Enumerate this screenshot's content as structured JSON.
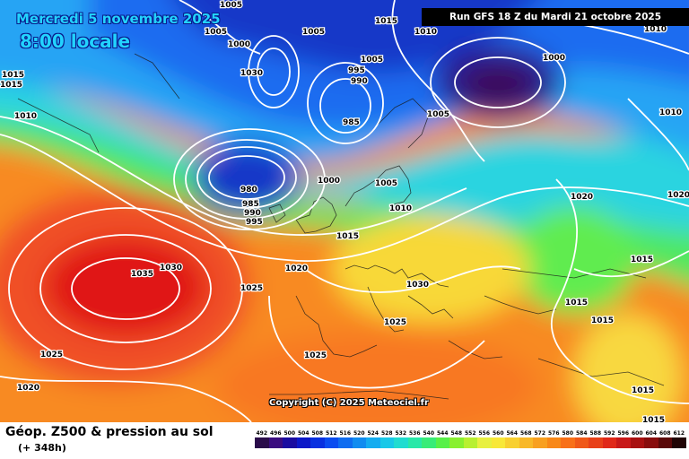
{
  "header": {
    "date": "Mercredi 5 novembre 2025",
    "time": "8:00 locale",
    "run_info": "Run GFS 18 Z du Mardi 21 octobre 2025"
  },
  "copyright": "Copyright (C) 2025 Meteociel.fr",
  "footer": {
    "title": "Géop. Z500 & pression au sol",
    "subtitle": "(+ 348h)"
  },
  "legend": {
    "unit_levels": [
      "492",
      "496",
      "500",
      "504",
      "508",
      "512",
      "516",
      "520",
      "524",
      "528",
      "532",
      "536",
      "540",
      "544",
      "548",
      "552",
      "556",
      "560",
      "564",
      "568",
      "572",
      "576",
      "580",
      "584",
      "588",
      "592",
      "596",
      "600",
      "604",
      "608",
      "612"
    ],
    "colors": [
      "#2a0c4a",
      "#3a0c80",
      "#1a0ca0",
      "#0c18c8",
      "#0830e0",
      "#0a4cf0",
      "#0e6cf0",
      "#108cf0",
      "#14acf0",
      "#18c8e8",
      "#20dcd0",
      "#28e8a8",
      "#38ec78",
      "#58f048",
      "#88f030",
      "#b8f030",
      "#e8f040",
      "#f8e838",
      "#f8d030",
      "#f8b828",
      "#f8a020",
      "#f88818",
      "#f87018",
      "#f05818",
      "#e84018",
      "#e02818",
      "#c81818",
      "#a81010",
      "#880c0c",
      "#5a0808",
      "#200404"
    ]
  },
  "map": {
    "colors": {
      "deep_blue": "#1438c8",
      "blue": "#1a6cf0",
      "light_blue": "#2aa8f4",
      "cyan": "#30d8e0",
      "green": "#48e870",
      "lime": "#a8f040",
      "yellow": "#f8e840",
      "orange": "#f8a028",
      "dark_orange": "#f87820",
      "red": "#f04828",
      "high_core": "#e01818",
      "low_core": "#3c0c58"
    },
    "isobar_labels": [
      "1005",
      "1005",
      "1000",
      "1015",
      "1005",
      "1010",
      "1000",
      "1010",
      "1015",
      "1015",
      "1010",
      "1030",
      "995",
      "990",
      "1005",
      "985",
      "1005",
      "980",
      "985",
      "990",
      "995",
      "1000",
      "1005",
      "1010",
      "1015",
      "1015",
      "1020",
      "1035",
      "1030",
      "1025",
      "1020",
      "1030",
      "1025",
      "1025",
      "1020",
      "1025",
      "1015",
      "1015",
      "1015",
      "1015",
      "1010",
      "1020"
    ]
  }
}
